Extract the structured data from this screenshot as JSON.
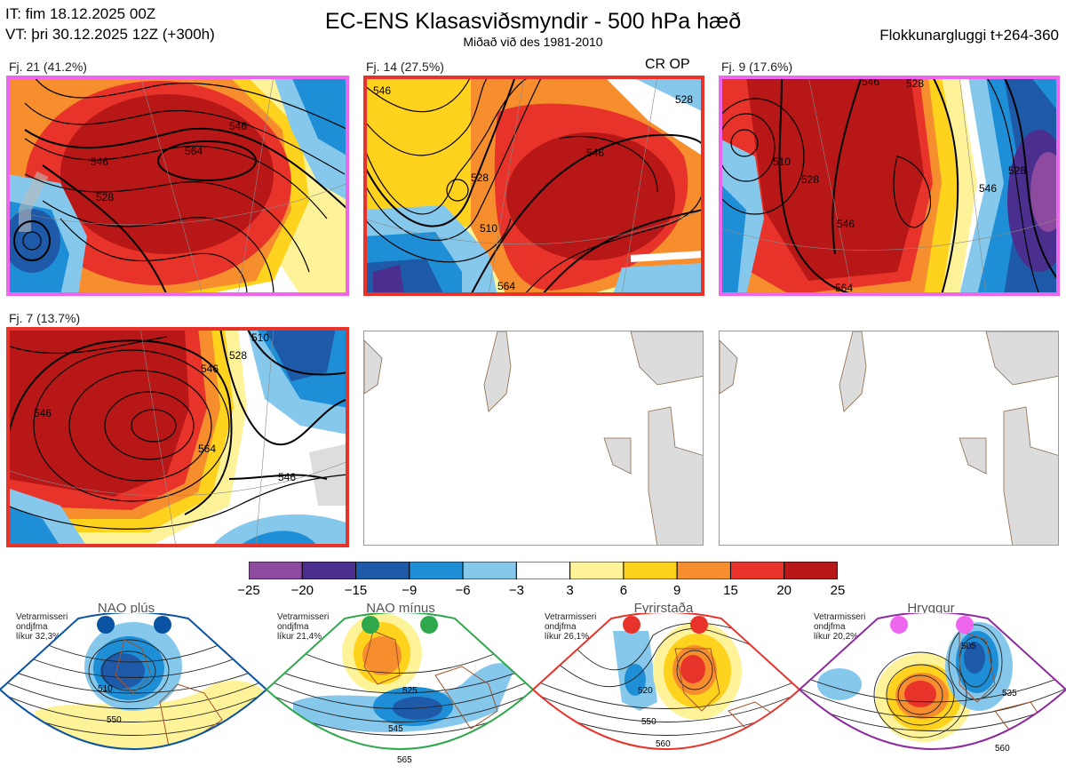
{
  "header": {
    "it_line": "IT: fim 18.12.2025 00Z",
    "vt_line": "VT: þri 30.12.2025 12Z  (+300h)",
    "title": "EC-ENS Klasasviðsmyndir - 500 hPa hæð",
    "subtitle": "Miðað við des 1981-2010",
    "window": "Flokkunargluggi t+264-360"
  },
  "panels": [
    {
      "label": "Fj. 21 (41.2%)",
      "frame_color": "#ee66ee",
      "contours": [
        "546",
        "564",
        "528",
        "546"
      ],
      "badge": ""
    },
    {
      "label": "Fj. 14 (27.5%)",
      "frame_color": "#e8332a",
      "contours": [
        "546",
        "528",
        "510",
        "528",
        "546",
        "564"
      ],
      "badge": "CR OP"
    },
    {
      "label": "Fj. 9 (17.6%)",
      "frame_color": "#ee66ee",
      "contours": [
        "546",
        "528",
        "510",
        "528",
        "546",
        "546",
        "528",
        "564"
      ],
      "badge": ""
    },
    {
      "label": "Fj. 7 (13.7%)",
      "frame_color": "#e8332a",
      "contours": [
        "546",
        "546",
        "528",
        "510",
        "564",
        "546"
      ],
      "badge": ""
    }
  ],
  "colorbar": {
    "ticks": [
      "−25",
      "−20",
      "−15",
      "−9",
      "−6",
      "−3",
      "3",
      "6",
      "9",
      "15",
      "20",
      "25"
    ],
    "colors": [
      "#8e4a9e",
      "#4a2f8f",
      "#1f5aa8",
      "#1e8fd6",
      "#86c8ec",
      "#ffffff",
      "#fff39a",
      "#ffd21d",
      "#f78e2e",
      "#e8332a",
      "#b81717"
    ]
  },
  "regimes": [
    {
      "title": "NAO plús",
      "note_lines": [
        "Vetrarmisseri",
        "ondjfma",
        "líkur 32,3%"
      ],
      "color": "#0a53a2",
      "contours": [
        "510",
        "550"
      ]
    },
    {
      "title": "NAO mínus",
      "note_lines": [
        "Vetrarmisseri",
        "ondjfma",
        "líkur 21,4%"
      ],
      "color": "#2fa84c",
      "contours": [
        "525",
        "545",
        "565"
      ]
    },
    {
      "title": "Fyrirstaða",
      "note_lines": [
        "Vetrarmisseri",
        "ondjfma",
        "líkur 26,1%"
      ],
      "color": "#e8332a",
      "contours": [
        "520",
        "550",
        "560"
      ]
    },
    {
      "title": "Hryggur",
      "note_lines": [
        "Vetrarmisseri",
        "ondjfma",
        "líkur 20,2%"
      ],
      "color": "#ee66ee",
      "contours": [
        "505",
        "535",
        "560"
      ]
    }
  ],
  "chart_data": {
    "type": "heatmap",
    "title": "EC-ENS Klasasviðsmyndir - 500 hPa hæð",
    "subtitle": "Miðað við des 1981-2010",
    "variable": "500 hPa height anomaly with height contours",
    "color_levels": [
      -25,
      -20,
      -15,
      -9,
      -6,
      -3,
      3,
      6,
      9,
      15,
      20,
      25
    ],
    "clusters": [
      {
        "name": "Fj. 21",
        "share_pct": 41.2
      },
      {
        "name": "Fj. 14",
        "share_pct": 27.5
      },
      {
        "name": "Fj. 9",
        "share_pct": 17.6
      },
      {
        "name": "Fj. 7",
        "share_pct": 13.7
      }
    ],
    "regime_probabilities_pct": [
      {
        "regime": "NAO plús",
        "value": 32.3
      },
      {
        "regime": "NAO mínus",
        "value": 21.4
      },
      {
        "regime": "Fyrirstaða",
        "value": 26.1
      },
      {
        "regime": "Hryggur",
        "value": 20.2
      }
    ]
  }
}
